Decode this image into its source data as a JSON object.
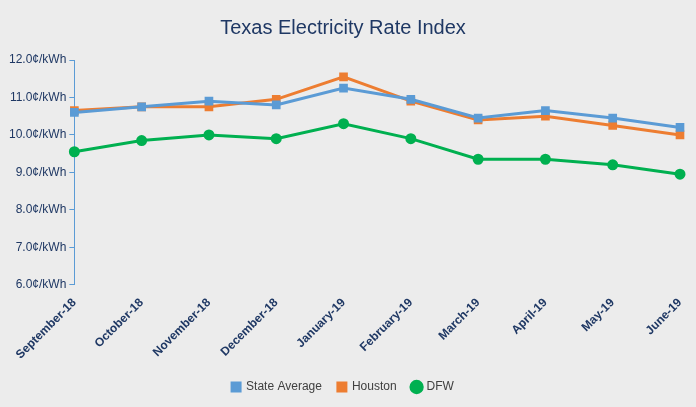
{
  "chart_data": {
    "type": "line",
    "title": "Texas Electricity Rate Index",
    "categories": [
      "September-18",
      "October-18",
      "November-18",
      "December-18",
      "January-19",
      "February-19",
      "March-19",
      "April-19",
      "May-19",
      "June-19"
    ],
    "series": [
      {
        "name": "State Average",
        "color": "#5B9BD5",
        "marker": "square",
        "line_style": "solid",
        "values": [
          10.6,
          10.75,
          10.9,
          10.8,
          11.25,
          10.95,
          10.45,
          10.65,
          10.45,
          10.2
        ]
      },
      {
        "name": "Houston",
        "color": "#ED7D31",
        "marker": "square",
        "line_style": "solid",
        "values": [
          10.65,
          10.75,
          10.75,
          10.95,
          11.55,
          10.9,
          10.4,
          10.5,
          10.25,
          10.0
        ]
      },
      {
        "name": "DFW",
        "color": "#00B050",
        "marker": "circle",
        "line_style": "solid",
        "values": [
          9.55,
          9.85,
          10.0,
          9.9,
          10.3,
          9.9,
          9.35,
          9.35,
          9.2,
          8.95
        ]
      }
    ],
    "ylim": [
      6,
      12
    ],
    "yticks": [
      {
        "value": 6,
        "label": "6.0¢/kWh"
      },
      {
        "value": 7,
        "label": "7.0¢/kWh"
      },
      {
        "value": 8,
        "label": "8.0¢/kWh"
      },
      {
        "value": 9,
        "label": "9.0¢/kWh"
      },
      {
        "value": 10,
        "label": "10.0¢/kWh"
      },
      {
        "value": 11,
        "label": "11.0¢/kWh"
      },
      {
        "value": 12,
        "label": "12.0¢/kWh"
      }
    ],
    "grid": false,
    "legend": "bottom"
  }
}
